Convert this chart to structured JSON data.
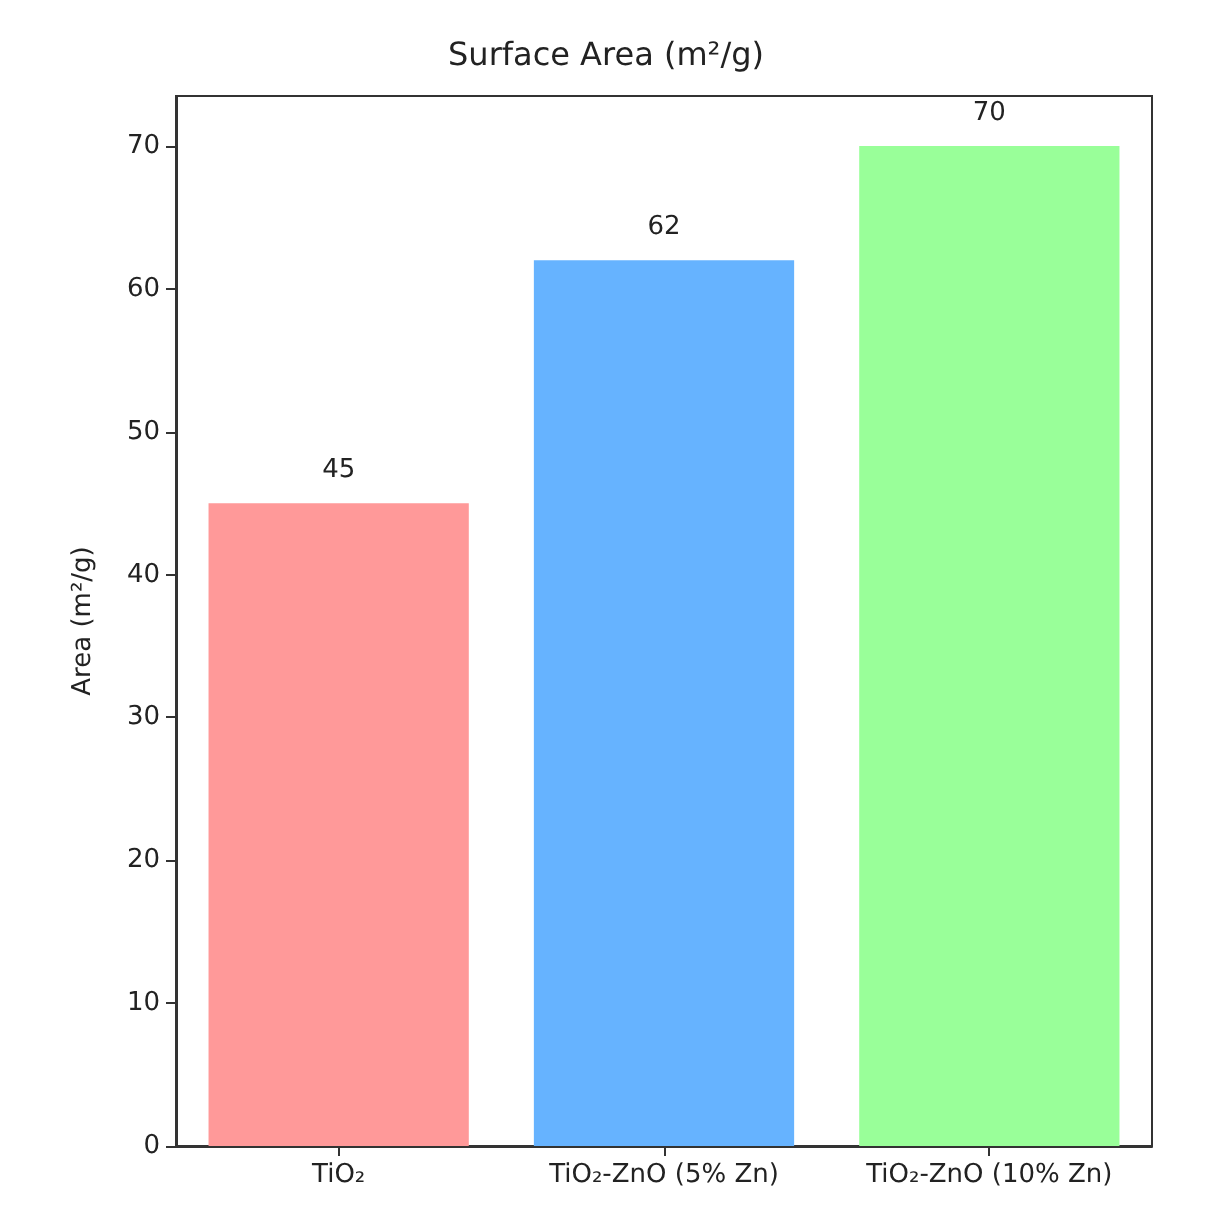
{
  "chart_data": {
    "type": "bar",
    "title": "Surface Area (m²/g)",
    "ylabel": "Area (m²/g)",
    "categories": [
      "TiO₂",
      "TiO₂-ZnO (5% Zn)",
      "TiO₂-ZnO (10% Zn)"
    ],
    "values": [
      45,
      62,
      70
    ],
    "colors": [
      "#ff9999",
      "#66b3ff",
      "#99ff99"
    ],
    "ylim": [
      0,
      73.5
    ],
    "yticks": [
      0,
      10,
      20,
      30,
      40,
      50,
      60,
      70
    ],
    "data_labels": true
  }
}
